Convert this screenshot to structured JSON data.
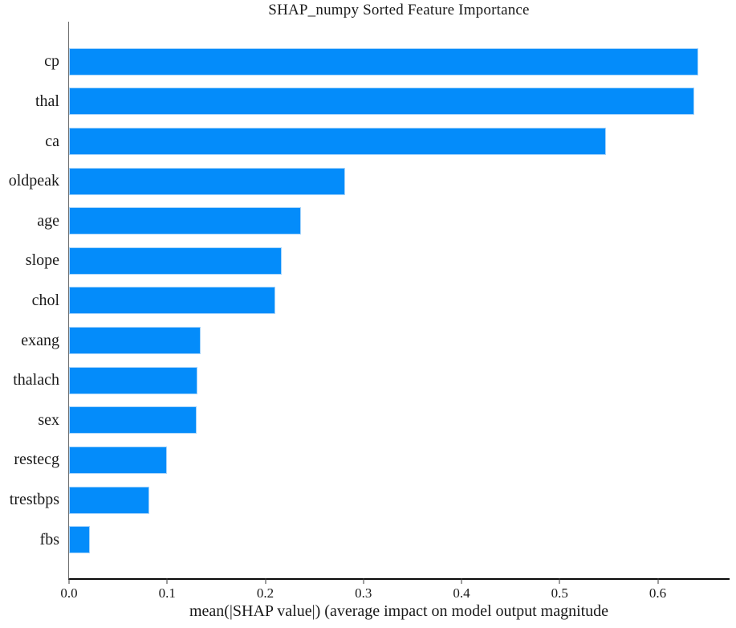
{
  "title": "SHAP_numpy Sorted Feature Importance",
  "chart_data": {
    "type": "bar",
    "orientation": "horizontal",
    "title": "SHAP_numpy Sorted Feature Importance",
    "xlabel": "mean(|SHAP value|) (average impact on model output magnitude",
    "ylabel": "",
    "categories": [
      "cp",
      "thal",
      "ca",
      "oldpeak",
      "age",
      "slope",
      "chol",
      "exang",
      "thalach",
      "sex",
      "restecg",
      "trestbps",
      "fbs"
    ],
    "values": [
      0.641,
      0.637,
      0.547,
      0.281,
      0.236,
      0.217,
      0.21,
      0.134,
      0.131,
      0.13,
      0.1,
      0.082,
      0.021
    ],
    "xticks": [
      0.0,
      0.1,
      0.2,
      0.3,
      0.4,
      0.5,
      0.6
    ],
    "xlim": [
      0,
      0.6732
    ],
    "grid": false,
    "legend": null,
    "bar_color": "#048cfa",
    "bar_edge_color": "#a5d4fb",
    "axis_color": "#0a0a0a",
    "left_spine_color": "#6f6f6f"
  }
}
